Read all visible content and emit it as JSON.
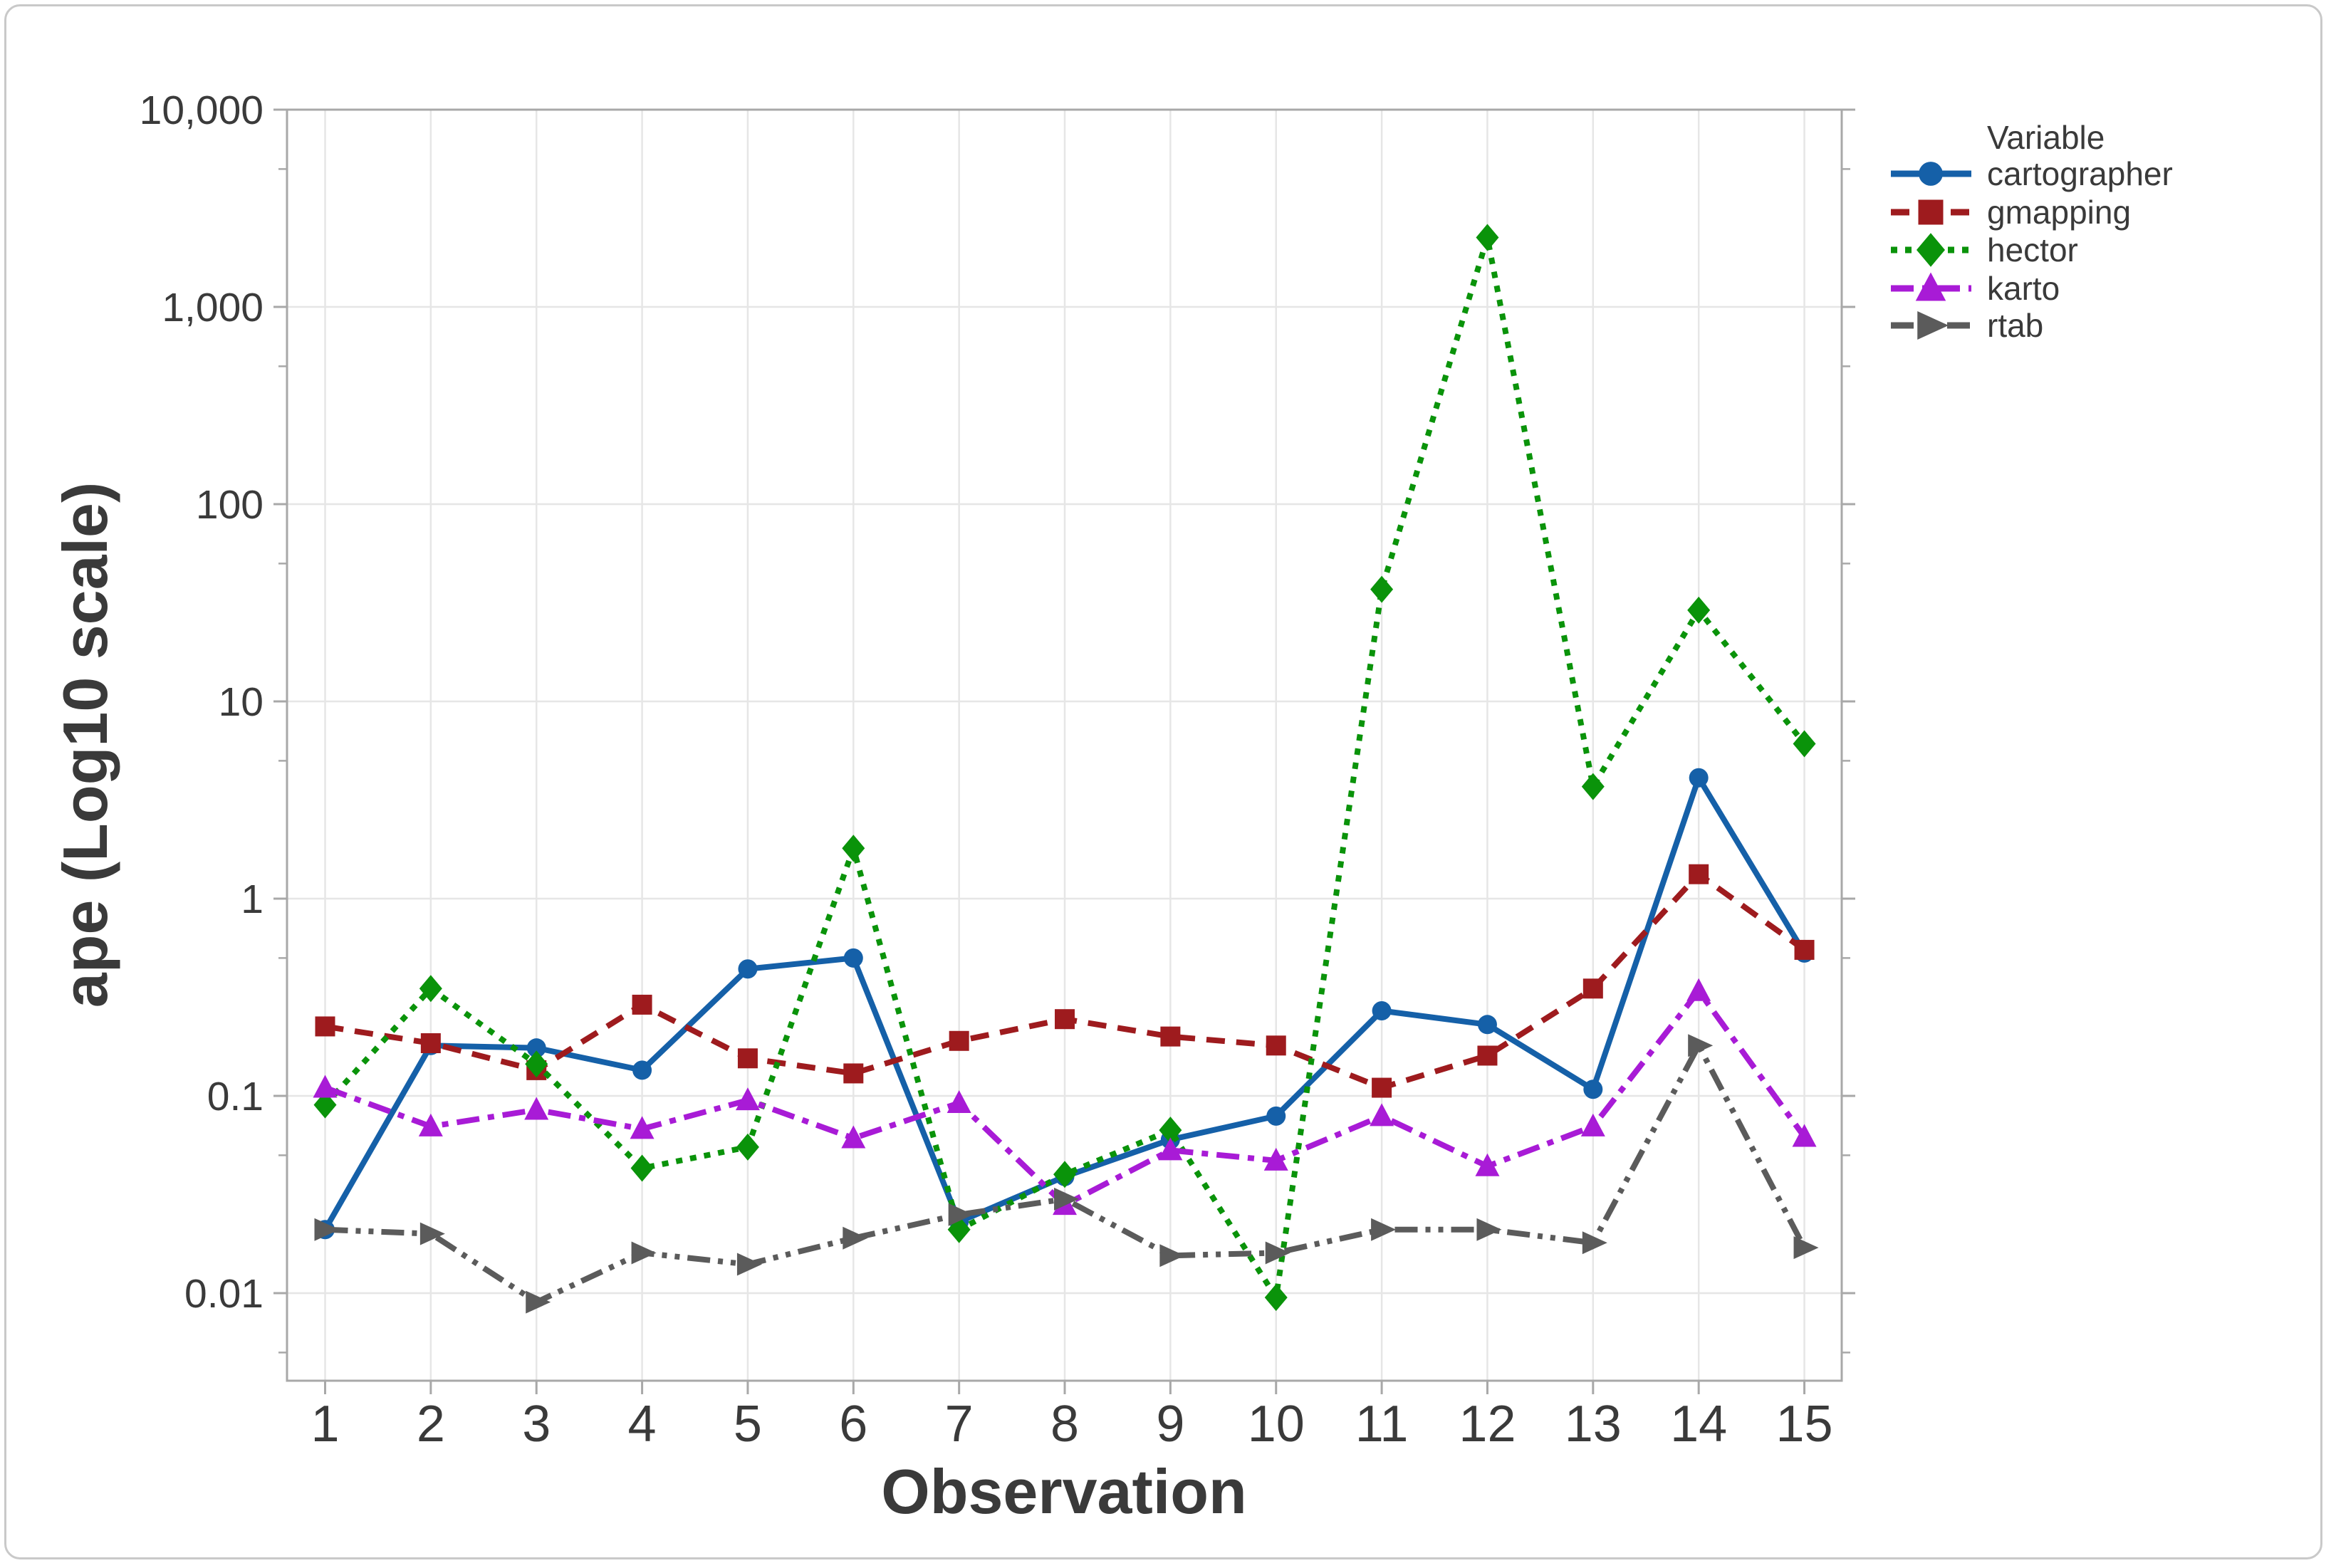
{
  "window": {
    "background": "#ffffff",
    "frame_border_color": "#c9c9c9"
  },
  "chart_data": {
    "type": "line",
    "title": "",
    "xlabel": "Observation",
    "ylabel": "ape (Log10 scale)",
    "y_scale": "log10",
    "ylim": [
      0.0028,
      10000
    ],
    "grid": true,
    "legend_title": "Variable",
    "legend_position": "right",
    "x": [
      1,
      2,
      3,
      4,
      5,
      6,
      7,
      8,
      9,
      10,
      11,
      12,
      13,
      14,
      15
    ],
    "y_ticks": [
      {
        "value": 0.01,
        "label": "0.01"
      },
      {
        "value": 0.1,
        "label": "0.1"
      },
      {
        "value": 1,
        "label": "1"
      },
      {
        "value": 10,
        "label": "10"
      },
      {
        "value": 100,
        "label": "100"
      },
      {
        "value": 1000,
        "label": "1,000"
      },
      {
        "value": 10000,
        "label": "10,000"
      }
    ],
    "y_minor_ticks": [
      0.005,
      0.05,
      0.5,
      5,
      50,
      500,
      5000
    ],
    "series": [
      {
        "name": "cartographer",
        "color": "#1560a8",
        "marker": "circle",
        "line_style": "solid",
        "values": [
          0.021,
          0.18,
          0.175,
          0.135,
          0.44,
          0.5,
          0.023,
          0.039,
          0.06,
          0.079,
          0.27,
          0.23,
          0.108,
          4.1,
          0.53
        ]
      },
      {
        "name": "gmapping",
        "color": "#9e1b1e",
        "marker": "square",
        "line_style": "dashed",
        "values": [
          0.225,
          0.185,
          0.135,
          0.29,
          0.155,
          0.13,
          0.19,
          0.245,
          0.2,
          0.18,
          0.11,
          0.16,
          0.35,
          1.33,
          0.55
        ]
      },
      {
        "name": "hector",
        "color": "#0a930a",
        "marker": "diamond",
        "line_style": "dotted",
        "values": [
          0.09,
          0.35,
          0.145,
          0.043,
          0.055,
          1.8,
          0.021,
          0.04,
          0.067,
          0.0095,
          37,
          2250,
          3.7,
          29,
          6.1
        ]
      },
      {
        "name": "karto",
        "color": "#a81bd6",
        "marker": "triangle-up",
        "line_style": "dashdot",
        "values": [
          0.11,
          0.07,
          0.085,
          0.068,
          0.095,
          0.061,
          0.092,
          0.028,
          0.053,
          0.047,
          0.079,
          0.044,
          0.07,
          0.34,
          0.062
        ]
      },
      {
        "name": "rtab",
        "color": "#5b5b5b",
        "marker": "triangle-right",
        "line_style": "dashdotdot",
        "values": [
          0.021,
          0.02,
          0.009,
          0.016,
          0.014,
          0.019,
          0.025,
          0.03,
          0.0155,
          0.016,
          0.021,
          0.021,
          0.018,
          0.18,
          0.017
        ]
      }
    ],
    "colors": {
      "text": "#3a3a3a",
      "axis": "#a8a8a8",
      "grid": "#e6e6e6"
    }
  }
}
